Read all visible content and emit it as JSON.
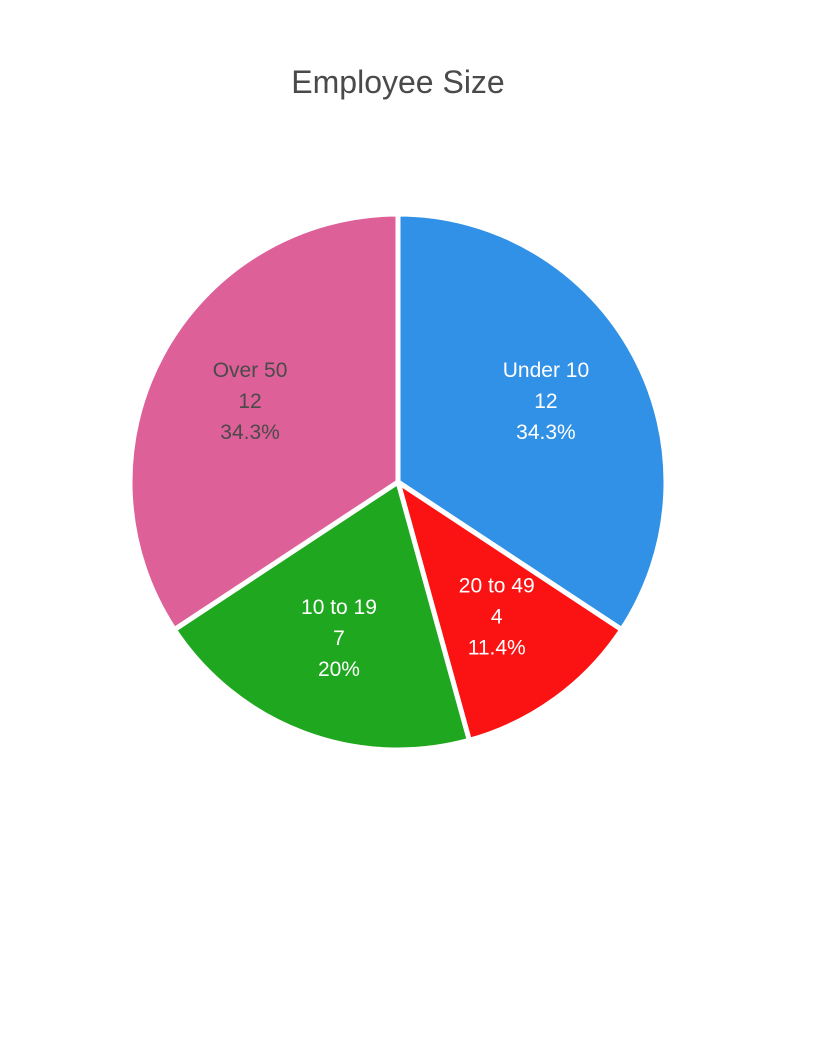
{
  "chart_data": {
    "type": "pie",
    "title": "Employee Size",
    "slices": [
      {
        "label": "Under 10",
        "value": 12,
        "percent": "34.3%",
        "color": "#3091E6",
        "text_color": "#ffffff"
      },
      {
        "label": "20 to 49",
        "value": 4,
        "percent": "11.4%",
        "color": "#FB1313",
        "text_color": "#ffffff"
      },
      {
        "label": "10 to 19",
        "value": 7,
        "percent": "20%",
        "color": "#20A720",
        "text_color": "#ffffff"
      },
      {
        "label": "Over 50",
        "value": 12,
        "percent": "34.3%",
        "color": "#DE6098",
        "text_color": "#4a4a4a"
      }
    ],
    "start": "12 o'clock",
    "direction": "clockwise",
    "legend": "none"
  }
}
